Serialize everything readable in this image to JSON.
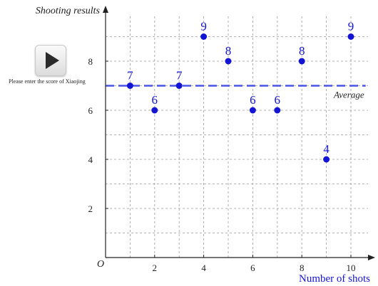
{
  "controls": {
    "play_icon": "play-icon",
    "prompt": "Please enter the score of Xiaojing"
  },
  "chart_data": {
    "type": "scatter",
    "ylabel": "Shooting results",
    "xlabel": "Number of shots",
    "origin_label": "O",
    "xlim": [
      0,
      11
    ],
    "ylim": [
      0,
      10
    ],
    "x_ticks": [
      2,
      4,
      6,
      8,
      10
    ],
    "y_ticks": [
      2,
      4,
      6,
      8
    ],
    "grid": true,
    "points": [
      {
        "x": 1,
        "y": 7,
        "label": "7"
      },
      {
        "x": 2,
        "y": 6,
        "label": "6"
      },
      {
        "x": 3,
        "y": 7,
        "label": "7"
      },
      {
        "x": 4,
        "y": 9,
        "label": "9"
      },
      {
        "x": 5,
        "y": 8,
        "label": "8"
      },
      {
        "x": 6,
        "y": 6,
        "label": "6"
      },
      {
        "x": 7,
        "y": 6,
        "label": "6"
      },
      {
        "x": 8,
        "y": 8,
        "label": "8"
      },
      {
        "x": 9,
        "y": 4,
        "label": "4"
      },
      {
        "x": 10,
        "y": 9,
        "label": "9"
      }
    ],
    "average": {
      "value": 7,
      "label": "Average"
    },
    "colors": {
      "points": "#1414d4",
      "average_line": "#4a55e6",
      "grid": "#9a9a9a",
      "axis": "#222222"
    }
  }
}
